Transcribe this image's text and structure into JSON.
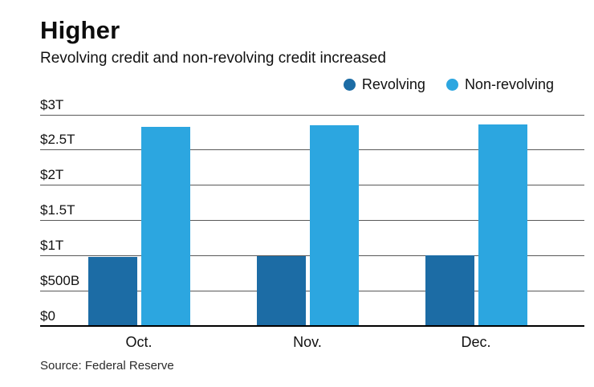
{
  "header": {
    "title": "Higher",
    "subtitle": "Revolving credit and non-revolving credit increased"
  },
  "chart_data": {
    "type": "bar",
    "title": "Higher",
    "subtitle": "Revolving credit and non-revolving credit increased",
    "categories": [
      "Oct.",
      "Nov.",
      "Dec."
    ],
    "series": [
      {
        "name": "Revolving",
        "color": "#1c6ca5",
        "values": [
          0.99,
          1.0,
          1.01
        ]
      },
      {
        "name": "Non-revolving",
        "color": "#2ca6e0",
        "values": [
          2.84,
          2.86,
          2.87
        ]
      }
    ],
    "unit": "trillions of US dollars",
    "y_ticks": [
      {
        "label": "$3T",
        "value": 3
      },
      {
        "label": "$2.5T",
        "value": 2.5
      },
      {
        "label": "$2T",
        "value": 2
      },
      {
        "label": "$1.5T",
        "value": 1.5
      },
      {
        "label": "$1T",
        "value": 1
      },
      {
        "label": "$500B",
        "value": 0.5
      },
      {
        "label": "$0",
        "value": 0
      }
    ],
    "ylim": [
      0,
      3
    ],
    "grid": true,
    "legend_position": "top-right"
  },
  "footer": {
    "source": "Source: Federal Reserve"
  }
}
